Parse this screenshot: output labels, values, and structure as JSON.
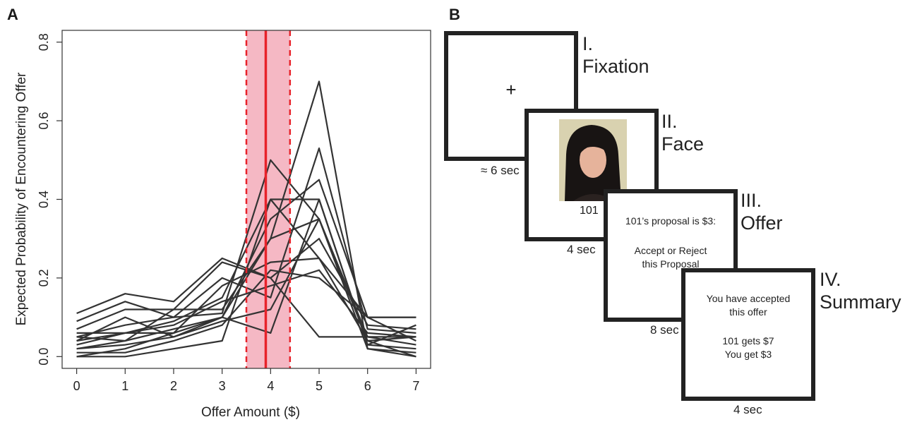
{
  "panel_a_letter": "A",
  "panel_b_letter": "B",
  "chart_data": {
    "type": "line",
    "xlabel": "Offer Amount ($)",
    "ylabel": "Expected Probability of Encountering Offer",
    "x": [
      0,
      1,
      2,
      3,
      4,
      5,
      6,
      7
    ],
    "xlim": [
      -0.3,
      7.3
    ],
    "ylim": [
      -0.03,
      0.83
    ],
    "xticks": [
      "0",
      "1",
      "2",
      "3",
      "4",
      "5",
      "6",
      "7"
    ],
    "yticks": [
      "0.0",
      "0.2",
      "0.4",
      "0.6",
      "0.8"
    ],
    "ytick_values": [
      0,
      0.2,
      0.4,
      0.6,
      0.8
    ],
    "grid": false,
    "line_color": "#333333",
    "reference_line": {
      "x": 3.9,
      "color": "#e8222a"
    },
    "reference_band": {
      "x_low": 3.5,
      "x_high": 4.4,
      "fill": "#f5b8c4",
      "edge_color": "#e8222a"
    },
    "series": [
      {
        "values": [
          0.11,
          0.16,
          0.14,
          0.25,
          0.2,
          0.05,
          0.05,
          0.05
        ]
      },
      {
        "values": [
          0.09,
          0.14,
          0.1,
          0.11,
          0.5,
          0.35,
          0.02,
          0.0
        ]
      },
      {
        "values": [
          0.07,
          0.12,
          0.12,
          0.12,
          0.3,
          0.7,
          0.02,
          0.01
        ]
      },
      {
        "values": [
          0.05,
          0.08,
          0.1,
          0.2,
          0.15,
          0.53,
          0.07,
          0.06
        ]
      },
      {
        "values": [
          0.04,
          0.1,
          0.05,
          0.1,
          0.35,
          0.45,
          0.1,
          0.1
        ]
      },
      {
        "values": [
          0.03,
          0.06,
          0.09,
          0.15,
          0.4,
          0.4,
          0.03,
          0.02
        ]
      },
      {
        "values": [
          0.02,
          0.04,
          0.12,
          0.24,
          0.2,
          0.3,
          0.08,
          0.07
        ]
      },
      {
        "values": [
          0.0,
          0.02,
          0.06,
          0.1,
          0.3,
          0.35,
          0.05,
          0.03
        ]
      },
      {
        "values": [
          0.0,
          0.0,
          0.02,
          0.04,
          0.4,
          0.25,
          0.04,
          0.05
        ]
      },
      {
        "values": [
          0.04,
          0.06,
          0.06,
          0.18,
          0.24,
          0.25,
          0.1,
          0.1
        ]
      },
      {
        "values": [
          0.06,
          0.06,
          0.08,
          0.14,
          0.18,
          0.22,
          0.06,
          0.05
        ]
      },
      {
        "values": [
          0.01,
          0.01,
          0.04,
          0.08,
          0.22,
          0.2,
          0.1,
          0.04
        ]
      },
      {
        "values": [
          0.05,
          0.04,
          0.07,
          0.1,
          0.06,
          0.4,
          0.03,
          0.08
        ]
      },
      {
        "values": [
          0.02,
          0.03,
          0.05,
          0.09,
          0.12,
          0.35,
          0.04,
          0.0
        ]
      }
    ]
  },
  "trial_stages": [
    {
      "numeral": "I.",
      "name": "Fixation",
      "duration": "≈ 6 sec",
      "content": "+"
    },
    {
      "numeral": "II.",
      "name": "Face",
      "duration": "4 sec",
      "face_caption": "101"
    },
    {
      "numeral": "III.",
      "name": "Offer",
      "duration": "8 sec",
      "line1": "101’s proposal is $3:",
      "line2": "Accept or Reject",
      "line3": "this Proposal"
    },
    {
      "numeral": "IV.",
      "name": "Summary",
      "duration": "4 sec",
      "line1": "You have accepted",
      "line2": "this offer",
      "line3": "101 gets $7",
      "line4": "You get $3"
    }
  ],
  "colors": {
    "frame": "#222222",
    "face_bg": "#d9d2b0",
    "hair": "#181413",
    "skin": "#e6b39b"
  }
}
